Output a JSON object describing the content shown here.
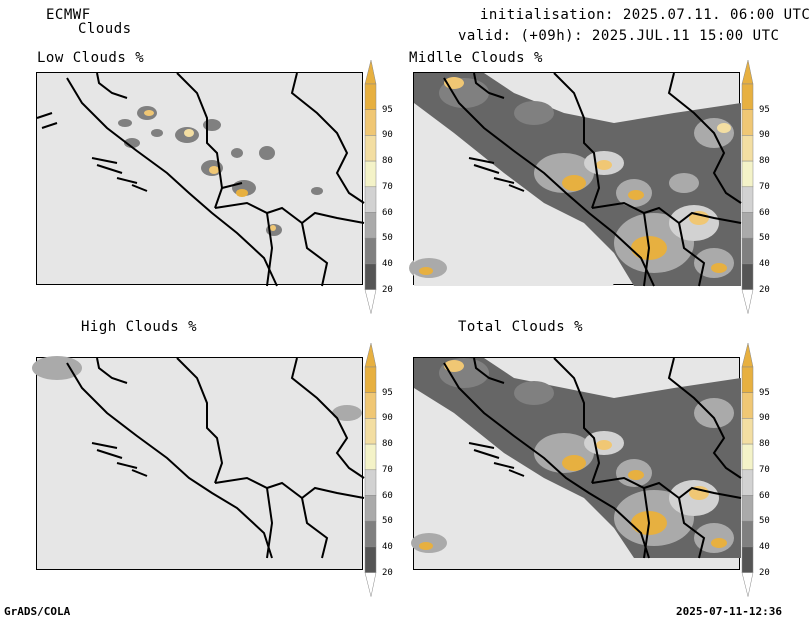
{
  "header": {
    "model": "ECMWF",
    "product": "Clouds",
    "init": "initialisation: 2025.07.11. 06:00 UTC",
    "valid": "valid: (+09h): 2025.JUL.11 15:00 UTC"
  },
  "panels": [
    {
      "title": "Low Clouds %"
    },
    {
      "title": "Midlle Clouds %"
    },
    {
      "title": "High Clouds %"
    },
    {
      "title": "Total Clouds %"
    }
  ],
  "colorbar": {
    "levels": [
      "95",
      "90",
      "80",
      "70",
      "60",
      "50",
      "40",
      "20"
    ],
    "colors": [
      "#e7b040",
      "#f0c774",
      "#f3dea2",
      "#f4f3c8",
      "#d2d2d2",
      "#aaaaaa",
      "#808080",
      "#555555"
    ]
  },
  "footer": {
    "left": "GrADS/COLA",
    "right": "2025-07-11-12:36"
  }
}
